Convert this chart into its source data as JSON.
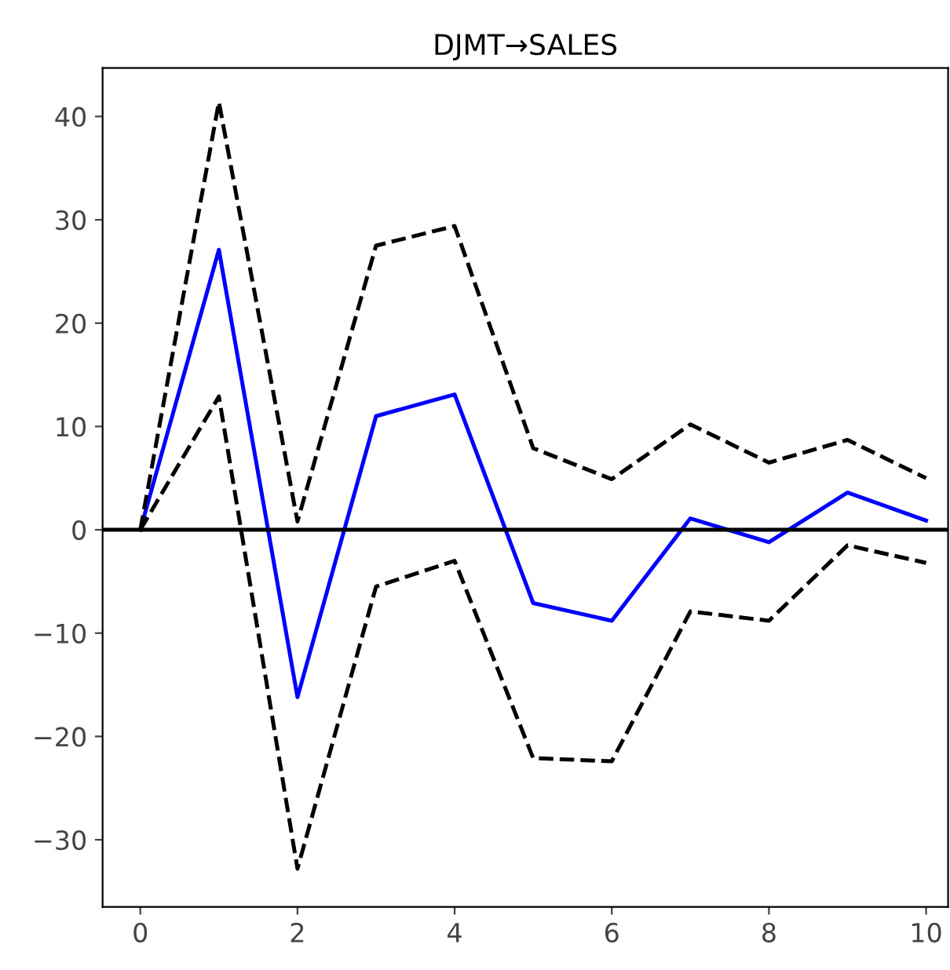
{
  "chart_data": {
    "type": "line",
    "title": "DJMT→SALES",
    "x": [
      0,
      1,
      2,
      3,
      4,
      5,
      6,
      7,
      8,
      9,
      10
    ],
    "series": [
      {
        "color": "#0000ff",
        "line_style": "solid",
        "values": [
          0,
          27.1,
          -16.2,
          11.0,
          13.1,
          -7.1,
          -8.8,
          1.1,
          -1.2,
          3.6,
          0.9
        ]
      },
      {
        "color": "#000000",
        "line_style": "dashed",
        "values": [
          0,
          41.4,
          0.8,
          27.5,
          29.4,
          7.9,
          4.9,
          10.2,
          6.5,
          8.7,
          5.0
        ]
      },
      {
        "color": "#000000",
        "line_style": "dashed",
        "values": [
          0,
          12.9,
          -32.8,
          -5.5,
          -3.0,
          -22.1,
          -22.4,
          -7.9,
          -8.8,
          -1.5,
          -3.2
        ]
      }
    ],
    "xlim": [
      -0.48,
      10.28
    ],
    "ylim": [
      -36.5,
      44.7
    ],
    "xticks": [
      0,
      2,
      4,
      6,
      8,
      10
    ],
    "yticks": [
      {
        "value": -30,
        "label": "−30"
      },
      {
        "value": -20,
        "label": "−20"
      },
      {
        "value": -10,
        "label": "−10"
      },
      0,
      10,
      20,
      30,
      40
    ],
    "ref_lines": [
      {
        "axis": "y",
        "value": 0,
        "color": "#000000",
        "line_style": "solid"
      }
    ],
    "grid": false,
    "legend": false
  }
}
